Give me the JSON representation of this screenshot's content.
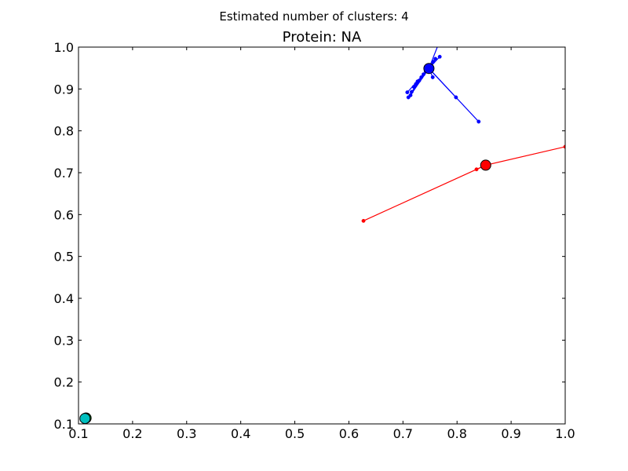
{
  "figure_title": "Estimated number of clusters: 4",
  "chart_data": {
    "type": "scatter",
    "title": "Protein: NA",
    "xlabel": "",
    "ylabel": "",
    "xlim": [
      0.1,
      1.0
    ],
    "ylim": [
      0.1,
      1.0
    ],
    "grid": false,
    "x_ticks": [
      "0.1",
      "0.2",
      "0.3",
      "0.4",
      "0.5",
      "0.6",
      "0.7",
      "0.8",
      "0.9",
      "1.0"
    ],
    "y_ticks": [
      "0.1",
      "0.2",
      "0.3",
      "0.4",
      "0.5",
      "0.6",
      "0.7",
      "0.8",
      "0.9",
      "1.0"
    ],
    "clusters": [
      {
        "color": "#0000ff",
        "center": [
          0.748,
          0.949
        ],
        "members": [
          [
            0.765,
            1.005
          ],
          [
            0.76,
            0.972
          ],
          [
            0.768,
            0.977
          ],
          [
            0.756,
            0.965
          ],
          [
            0.752,
            0.957
          ],
          [
            0.742,
            0.942
          ],
          [
            0.738,
            0.935
          ],
          [
            0.734,
            0.928
          ],
          [
            0.73,
            0.92
          ],
          [
            0.727,
            0.918
          ],
          [
            0.724,
            0.912
          ],
          [
            0.72,
            0.905
          ],
          [
            0.716,
            0.893
          ],
          [
            0.71,
            0.88
          ],
          [
            0.708,
            0.892
          ],
          [
            0.714,
            0.885
          ],
          [
            0.755,
            0.928
          ],
          [
            0.798,
            0.88
          ],
          [
            0.84,
            0.822
          ]
        ]
      },
      {
        "color": "#ff0000",
        "center": [
          0.853,
          0.718
        ],
        "members": [
          [
            0.627,
            0.585
          ],
          [
            0.836,
            0.708
          ],
          [
            1.0,
            0.762
          ]
        ]
      },
      {
        "color": "#008000",
        "center": [
          0.114,
          0.114
        ],
        "members": []
      },
      {
        "color": "#00bfbf",
        "center": [
          0.112,
          0.113
        ],
        "members": []
      }
    ]
  }
}
